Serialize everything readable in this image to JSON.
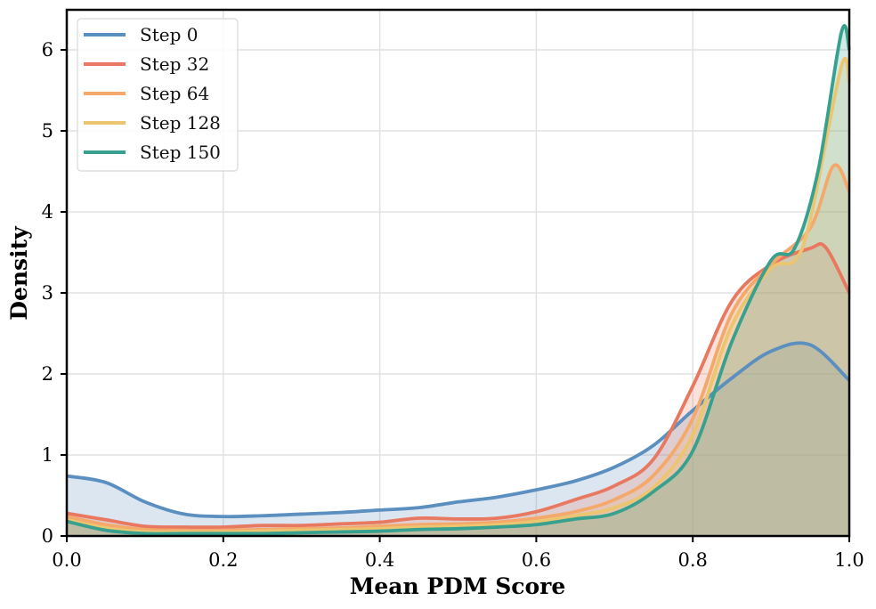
{
  "chart_data": {
    "type": "area",
    "title": "",
    "xlabel": "Mean PDM Score",
    "ylabel": "Density",
    "xlim": [
      0.0,
      1.0
    ],
    "ylim": [
      0,
      6.5
    ],
    "xticks": [
      "0.0",
      "0.2",
      "0.4",
      "0.6",
      "0.8",
      "1.0"
    ],
    "yticks": [
      "0",
      "1",
      "2",
      "3",
      "4",
      "5",
      "6"
    ],
    "grid": true,
    "legend_position": "upper left",
    "series": [
      {
        "name": "Step 0",
        "color": "#5b8fc0",
        "fill": "#dae6f1",
        "x": [
          0,
          0.05,
          0.1,
          0.15,
          0.2,
          0.25,
          0.3,
          0.35,
          0.4,
          0.45,
          0.5,
          0.55,
          0.6,
          0.65,
          0.7,
          0.75,
          0.8,
          0.85,
          0.9,
          0.95,
          1.0
        ],
        "y": [
          0.74,
          0.66,
          0.42,
          0.27,
          0.24,
          0.25,
          0.27,
          0.29,
          0.32,
          0.35,
          0.42,
          0.48,
          0.57,
          0.68,
          0.85,
          1.12,
          1.55,
          1.95,
          2.28,
          2.36,
          1.92
        ]
      },
      {
        "name": "Step 32",
        "color": "#e8785f",
        "fill": "#f3d6cc",
        "x": [
          0,
          0.05,
          0.1,
          0.15,
          0.2,
          0.25,
          0.3,
          0.35,
          0.4,
          0.45,
          0.5,
          0.55,
          0.6,
          0.65,
          0.7,
          0.75,
          0.8,
          0.85,
          0.9,
          0.95,
          0.97,
          1.0
        ],
        "y": [
          0.28,
          0.2,
          0.12,
          0.11,
          0.11,
          0.13,
          0.13,
          0.15,
          0.17,
          0.22,
          0.21,
          0.22,
          0.3,
          0.45,
          0.62,
          0.95,
          1.85,
          2.9,
          3.35,
          3.55,
          3.56,
          3.0
        ]
      },
      {
        "name": "Step 64",
        "color": "#f4a96a",
        "fill": "#f6dcc6",
        "x": [
          0,
          0.05,
          0.1,
          0.15,
          0.2,
          0.25,
          0.3,
          0.35,
          0.4,
          0.45,
          0.5,
          0.55,
          0.6,
          0.65,
          0.7,
          0.75,
          0.8,
          0.85,
          0.9,
          0.95,
          0.98,
          1.0
        ],
        "y": [
          0.24,
          0.14,
          0.08,
          0.07,
          0.07,
          0.08,
          0.09,
          0.1,
          0.12,
          0.14,
          0.15,
          0.17,
          0.22,
          0.3,
          0.45,
          0.75,
          1.45,
          2.75,
          3.35,
          3.8,
          4.57,
          4.25
        ]
      },
      {
        "name": "Step 128",
        "color": "#ebc56f",
        "fill": "#efe1bd",
        "x": [
          0,
          0.05,
          0.1,
          0.15,
          0.2,
          0.25,
          0.3,
          0.35,
          0.4,
          0.45,
          0.5,
          0.55,
          0.6,
          0.65,
          0.7,
          0.75,
          0.8,
          0.85,
          0.9,
          0.93,
          0.95,
          0.99,
          1.0
        ],
        "y": [
          0.2,
          0.1,
          0.05,
          0.05,
          0.05,
          0.06,
          0.07,
          0.08,
          0.09,
          0.11,
          0.12,
          0.14,
          0.18,
          0.25,
          0.35,
          0.6,
          1.25,
          2.6,
          3.3,
          3.4,
          3.9,
          5.8,
          5.6
        ]
      },
      {
        "name": "Step 150",
        "color": "#37a08e",
        "fill": "#cfe6df",
        "x": [
          0,
          0.05,
          0.1,
          0.15,
          0.2,
          0.25,
          0.3,
          0.35,
          0.4,
          0.45,
          0.5,
          0.55,
          0.6,
          0.65,
          0.7,
          0.75,
          0.8,
          0.85,
          0.9,
          0.93,
          0.96,
          0.99,
          1.0
        ],
        "y": [
          0.18,
          0.07,
          0.03,
          0.03,
          0.03,
          0.03,
          0.04,
          0.05,
          0.06,
          0.08,
          0.09,
          0.11,
          0.14,
          0.21,
          0.28,
          0.55,
          1.05,
          2.4,
          3.4,
          3.55,
          4.5,
          6.22,
          6.0
        ]
      }
    ]
  }
}
